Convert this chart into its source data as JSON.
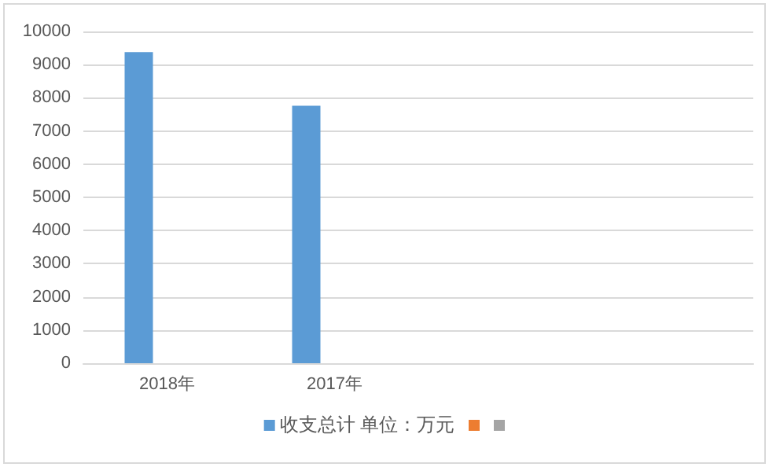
{
  "chart_data": {
    "type": "bar",
    "categories": [
      "2018年",
      "2017年",
      null,
      null
    ],
    "series": [
      {
        "name": "收支总计 单位：万元",
        "color": "#5b9bd5",
        "values": [
          9380,
          7760,
          null,
          null
        ]
      },
      {
        "color": "#ed7d31",
        "values": [
          null,
          null,
          null,
          null
        ]
      },
      {
        "color": "#a5a5a5",
        "values": [
          null,
          null,
          null,
          null
        ]
      }
    ],
    "ylim": [
      0,
      10000
    ],
    "yticks": [
      0,
      1000,
      2000,
      3000,
      4000,
      5000,
      6000,
      7000,
      8000,
      9000,
      10000
    ],
    "grid": "y",
    "legend": "bottom"
  }
}
